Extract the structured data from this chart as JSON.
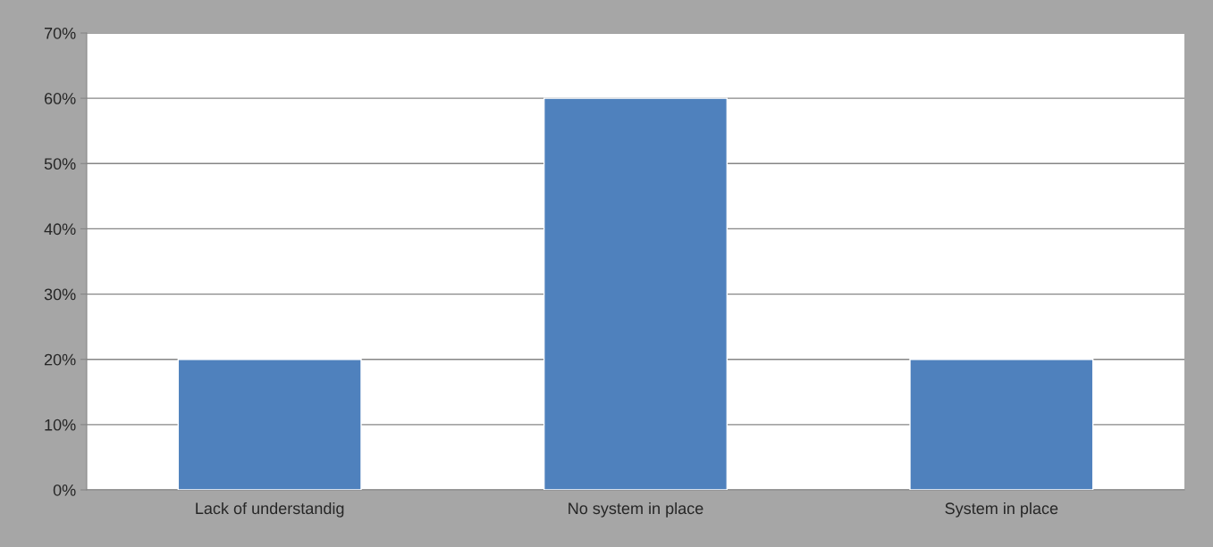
{
  "chart_data": {
    "type": "bar",
    "categories": [
      "Lack of understandig",
      "No system in place",
      "System in place"
    ],
    "values": [
      20,
      60,
      20
    ],
    "color": "#4f81bd",
    "ylim": [
      0,
      70
    ],
    "yticks": [
      {
        "value": 0,
        "label": "0%"
      },
      {
        "value": 10,
        "label": "10%"
      },
      {
        "value": 20,
        "label": "20%"
      },
      {
        "value": 30,
        "label": "30%"
      },
      {
        "value": 40,
        "label": "40%"
      },
      {
        "value": 50,
        "label": "50%"
      },
      {
        "value": 60,
        "label": "60%"
      },
      {
        "value": 70,
        "label": "70%"
      }
    ],
    "grid": "y",
    "legend": false
  }
}
